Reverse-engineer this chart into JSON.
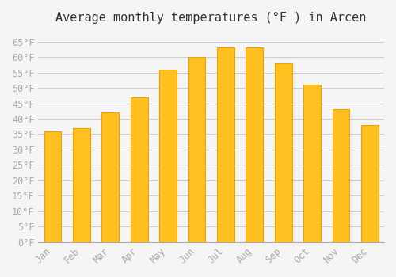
{
  "title": "Average monthly temperatures (°F ) in Arcen",
  "months": [
    "Jan",
    "Feb",
    "Mar",
    "Apr",
    "May",
    "Jun",
    "Jul",
    "Aug",
    "Sep",
    "Oct",
    "Nov",
    "Dec"
  ],
  "values": [
    36,
    37,
    42,
    47,
    56,
    60,
    63,
    63,
    58,
    51,
    43,
    38
  ],
  "bar_color": "#FFC020",
  "bar_edge_color": "#F0A000",
  "background_color": "#F5F5F5",
  "grid_color": "#CCCCCC",
  "ylim": [
    0,
    68
  ],
  "yticks": [
    0,
    5,
    10,
    15,
    20,
    25,
    30,
    35,
    40,
    45,
    50,
    55,
    60,
    65
  ],
  "ylabel_suffix": "°F",
  "title_fontsize": 11,
  "tick_fontsize": 8.5,
  "font_color": "#AAAAAA"
}
